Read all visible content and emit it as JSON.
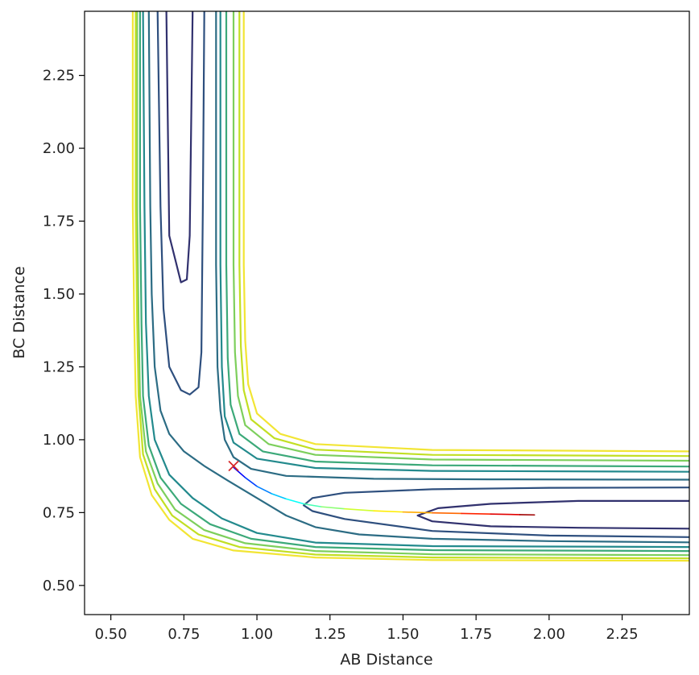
{
  "chart_data": {
    "type": "contour",
    "xlabel": "AB Distance",
    "ylabel": "BC Distance",
    "xlim": [
      0.41,
      2.48
    ],
    "ylim": [
      0.4,
      2.47
    ],
    "xticks": [
      0.5,
      0.75,
      1.0,
      1.25,
      1.5,
      1.75,
      2.0,
      2.25
    ],
    "yticks": [
      0.5,
      0.75,
      1.0,
      1.25,
      1.5,
      1.75,
      2.0,
      2.25
    ],
    "xtick_labels": [
      "0.50",
      "0.75",
      "1.00",
      "1.25",
      "1.50",
      "1.75",
      "2.00",
      "2.25"
    ],
    "ytick_labels": [
      "0.50",
      "0.75",
      "1.00",
      "1.25",
      "1.50",
      "1.75",
      "2.00",
      "2.25"
    ],
    "grid": false,
    "colormap": "viridis",
    "contour_levels": [
      {
        "color": "#31316e",
        "segments": [
          [
            [
              0.69,
              2.47
            ],
            [
              0.7,
              1.7
            ],
            [
              0.72,
              1.62
            ],
            [
              0.74,
              1.54
            ],
            [
              0.76,
              1.55
            ],
            [
              0.77,
              1.7
            ],
            [
              0.78,
              2.47
            ]
          ],
          [
            [
              2.48,
              0.79
            ],
            [
              2.1,
              0.79
            ],
            [
              1.8,
              0.78
            ],
            [
              1.62,
              0.765
            ],
            [
              1.55,
              0.74
            ],
            [
              1.6,
              0.72
            ],
            [
              1.8,
              0.703
            ],
            [
              2.1,
              0.698
            ],
            [
              2.48,
              0.695
            ]
          ]
        ]
      },
      {
        "color": "#2e4f7e",
        "segments": [
          [
            [
              0.66,
              2.47
            ],
            [
              0.67,
              1.8
            ],
            [
              0.68,
              1.45
            ],
            [
              0.7,
              1.25
            ],
            [
              0.74,
              1.17
            ],
            [
              0.77,
              1.155
            ],
            [
              0.8,
              1.18
            ],
            [
              0.81,
              1.3
            ],
            [
              0.815,
              1.8
            ],
            [
              0.82,
              2.47
            ]
          ],
          [
            [
              2.48,
              0.836
            ],
            [
              2.0,
              0.835
            ],
            [
              1.6,
              0.83
            ],
            [
              1.3,
              0.818
            ],
            [
              1.19,
              0.8
            ],
            [
              1.16,
              0.775
            ],
            [
              1.19,
              0.755
            ],
            [
              1.3,
              0.728
            ],
            [
              1.6,
              0.687
            ],
            [
              2.0,
              0.671
            ],
            [
              2.48,
              0.666
            ]
          ]
        ]
      },
      {
        "color": "#2c6c84",
        "segments": [
          [
            [
              0.86,
              2.47
            ],
            [
              0.86,
              1.6
            ],
            [
              0.865,
              1.25
            ],
            [
              0.875,
              1.1
            ],
            [
              0.89,
              1.0
            ],
            [
              0.92,
              0.94
            ],
            [
              0.98,
              0.9
            ],
            [
              1.1,
              0.876
            ],
            [
              1.4,
              0.866
            ],
            [
              1.8,
              0.864
            ],
            [
              2.48,
              0.863
            ]
          ],
          [
            [
              0.63,
              2.47
            ],
            [
              0.635,
              1.8
            ],
            [
              0.64,
              1.5
            ],
            [
              0.65,
              1.25
            ],
            [
              0.67,
              1.1
            ],
            [
              0.7,
              1.02
            ],
            [
              0.75,
              0.96
            ],
            [
              0.82,
              0.91
            ],
            [
              0.9,
              0.86
            ],
            [
              1.0,
              0.8
            ],
            [
              1.1,
              0.74
            ],
            [
              1.2,
              0.7
            ],
            [
              1.35,
              0.675
            ],
            [
              1.6,
              0.66
            ],
            [
              2.0,
              0.652
            ],
            [
              2.48,
              0.648
            ]
          ]
        ]
      },
      {
        "color": "#238a8d",
        "segments": [
          [
            [
              0.61,
              2.47
            ],
            [
              0.615,
              1.8
            ],
            [
              0.62,
              1.4
            ],
            [
              0.63,
              1.15
            ],
            [
              0.65,
              1.0
            ],
            [
              0.7,
              0.88
            ],
            [
              0.78,
              0.8
            ],
            [
              0.88,
              0.73
            ],
            [
              1.0,
              0.68
            ],
            [
              1.2,
              0.647
            ],
            [
              1.6,
              0.635
            ],
            [
              2.48,
              0.632
            ]
          ],
          [
            [
              0.875,
              2.47
            ],
            [
              0.875,
              1.6
            ],
            [
              0.88,
              1.25
            ],
            [
              0.89,
              1.08
            ],
            [
              0.92,
              0.99
            ],
            [
              1.0,
              0.935
            ],
            [
              1.2,
              0.903
            ],
            [
              1.6,
              0.893
            ],
            [
              2.48,
              0.89
            ]
          ]
        ]
      },
      {
        "color": "#3ca979",
        "segments": [
          [
            [
              0.6,
              2.47
            ],
            [
              0.6,
              1.8
            ],
            [
              0.605,
              1.4
            ],
            [
              0.61,
              1.15
            ],
            [
              0.63,
              0.98
            ],
            [
              0.67,
              0.87
            ],
            [
              0.74,
              0.78
            ],
            [
              0.84,
              0.71
            ],
            [
              0.98,
              0.66
            ],
            [
              1.2,
              0.632
            ],
            [
              1.6,
              0.621
            ],
            [
              2.48,
              0.618
            ]
          ],
          [
            [
              0.895,
              2.47
            ],
            [
              0.895,
              1.6
            ],
            [
              0.9,
              1.28
            ],
            [
              0.91,
              1.12
            ],
            [
              0.94,
              1.02
            ],
            [
              1.02,
              0.96
            ],
            [
              1.2,
              0.925
            ],
            [
              1.6,
              0.912
            ],
            [
              2.48,
              0.908
            ]
          ]
        ]
      },
      {
        "color": "#7dcf5c",
        "segments": [
          [
            [
              0.59,
              2.47
            ],
            [
              0.59,
              1.8
            ],
            [
              0.595,
              1.4
            ],
            [
              0.6,
              1.15
            ],
            [
              0.62,
              0.96
            ],
            [
              0.66,
              0.85
            ],
            [
              0.72,
              0.76
            ],
            [
              0.82,
              0.69
            ],
            [
              0.96,
              0.645
            ],
            [
              1.2,
              0.618
            ],
            [
              1.6,
              0.607
            ],
            [
              2.48,
              0.604
            ]
          ],
          [
            [
              0.92,
              2.47
            ],
            [
              0.92,
              1.6
            ],
            [
              0.925,
              1.3
            ],
            [
              0.935,
              1.15
            ],
            [
              0.96,
              1.05
            ],
            [
              1.04,
              0.985
            ],
            [
              1.2,
              0.948
            ],
            [
              1.6,
              0.932
            ],
            [
              2.48,
              0.928
            ]
          ]
        ]
      },
      {
        "color": "#c2df23",
        "segments": [
          [
            [
              0.585,
              2.47
            ],
            [
              0.585,
              1.8
            ],
            [
              0.59,
              1.4
            ],
            [
              0.595,
              1.15
            ],
            [
              0.61,
              0.95
            ],
            [
              0.65,
              0.83
            ],
            [
              0.71,
              0.74
            ],
            [
              0.8,
              0.675
            ],
            [
              0.94,
              0.632
            ],
            [
              1.2,
              0.606
            ],
            [
              1.6,
              0.596
            ],
            [
              2.48,
              0.593
            ]
          ],
          [
            [
              0.94,
              2.47
            ],
            [
              0.94,
              1.6
            ],
            [
              0.945,
              1.32
            ],
            [
              0.955,
              1.17
            ],
            [
              0.98,
              1.07
            ],
            [
              1.06,
              1.005
            ],
            [
              1.2,
              0.966
            ],
            [
              1.6,
              0.948
            ],
            [
              2.48,
              0.944
            ]
          ]
        ]
      },
      {
        "color": "#f2e534",
        "segments": [
          [
            [
              0.575,
              2.47
            ],
            [
              0.575,
              1.8
            ],
            [
              0.58,
              1.4
            ],
            [
              0.585,
              1.15
            ],
            [
              0.6,
              0.94
            ],
            [
              0.64,
              0.81
            ],
            [
              0.7,
              0.725
            ],
            [
              0.78,
              0.66
            ],
            [
              0.92,
              0.62
            ],
            [
              1.2,
              0.596
            ],
            [
              1.6,
              0.587
            ],
            [
              2.48,
              0.585
            ]
          ],
          [
            [
              0.955,
              2.47
            ],
            [
              0.955,
              1.6
            ],
            [
              0.96,
              1.34
            ],
            [
              0.97,
              1.19
            ],
            [
              1.0,
              1.09
            ],
            [
              1.08,
              1.02
            ],
            [
              1.2,
              0.985
            ],
            [
              1.6,
              0.965
            ],
            [
              2.48,
              0.96
            ]
          ]
        ]
      }
    ],
    "trajectory": {
      "colormap": "jet",
      "points": [
        [
          0.92,
          0.905
        ],
        [
          0.96,
          0.87
        ],
        [
          1.0,
          0.84
        ],
        [
          1.05,
          0.815
        ],
        [
          1.1,
          0.797
        ],
        [
          1.16,
          0.78
        ],
        [
          1.22,
          0.77
        ],
        [
          1.3,
          0.763
        ],
        [
          1.4,
          0.756
        ],
        [
          1.5,
          0.752
        ],
        [
          1.6,
          0.749
        ],
        [
          1.7,
          0.747
        ],
        [
          1.8,
          0.745
        ],
        [
          1.9,
          0.743
        ],
        [
          1.95,
          0.742
        ]
      ]
    },
    "marker": {
      "x": 0.92,
      "y": 0.91,
      "symbol": "x",
      "color": "#d62728"
    }
  }
}
